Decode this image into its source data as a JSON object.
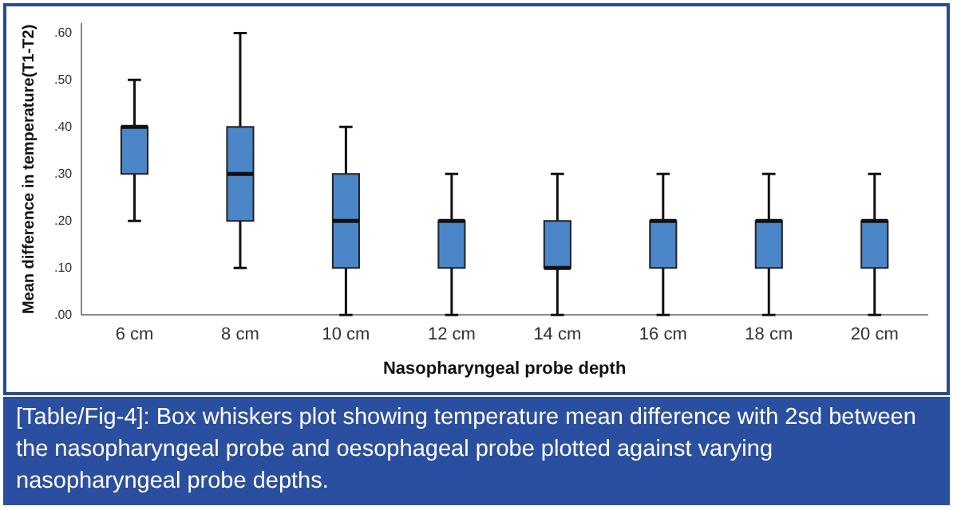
{
  "chart_data": {
    "type": "box",
    "xlabel": "Nasopharyngeal probe depth",
    "ylabel": "Mean difference in temperature(T1-T2)",
    "categories": [
      "6 cm",
      "8 cm",
      "10 cm",
      "12 cm",
      "14 cm",
      "16 cm",
      "18 cm",
      "20 cm"
    ],
    "color": "#4a86c8",
    "boxes": [
      {
        "low": 0.2,
        "q1": 0.3,
        "median": 0.4,
        "q3": 0.4,
        "high": 0.5
      },
      {
        "low": 0.1,
        "q1": 0.2,
        "median": 0.3,
        "q3": 0.4,
        "high": 0.6
      },
      {
        "low": 0,
        "q1": 0.1,
        "median": 0.2,
        "q3": 0.3,
        "high": 0.4
      },
      {
        "low": 0,
        "q1": 0.1,
        "median": 0.2,
        "q3": 0.2,
        "high": 0.3
      },
      {
        "low": 0,
        "q1": 0.1,
        "median": 0.1,
        "q3": 0.2,
        "high": 0.3
      },
      {
        "low": 0,
        "q1": 0.1,
        "median": 0.2,
        "q3": 0.2,
        "high": 0.3
      },
      {
        "low": 0,
        "q1": 0.1,
        "median": 0.2,
        "q3": 0.2,
        "high": 0.3
      },
      {
        "low": 0,
        "q1": 0.1,
        "median": 0.2,
        "q3": 0.2,
        "high": 0.3
      }
    ],
    "ylim": [
      0,
      0.62
    ],
    "yticks": [
      {
        "value": 0,
        "label": ".00"
      },
      {
        "value": 0.1,
        "label": ".10"
      },
      {
        "value": 0.2,
        "label": ".20"
      },
      {
        "value": 0.3,
        "label": ".30"
      },
      {
        "value": 0.4,
        "label": ".40"
      },
      {
        "value": 0.5,
        "label": ".50"
      },
      {
        "value": 0.6,
        "label": ".60"
      }
    ],
    "grid": false,
    "legend": false,
    "annotations": [
      "[Table/Fig-4]: Box whiskers plot showing temperature mean difference with 2sd between the nasopharyngeal probe and oesophageal probe plotted against varying nasopharyngeal probe depths."
    ]
  }
}
